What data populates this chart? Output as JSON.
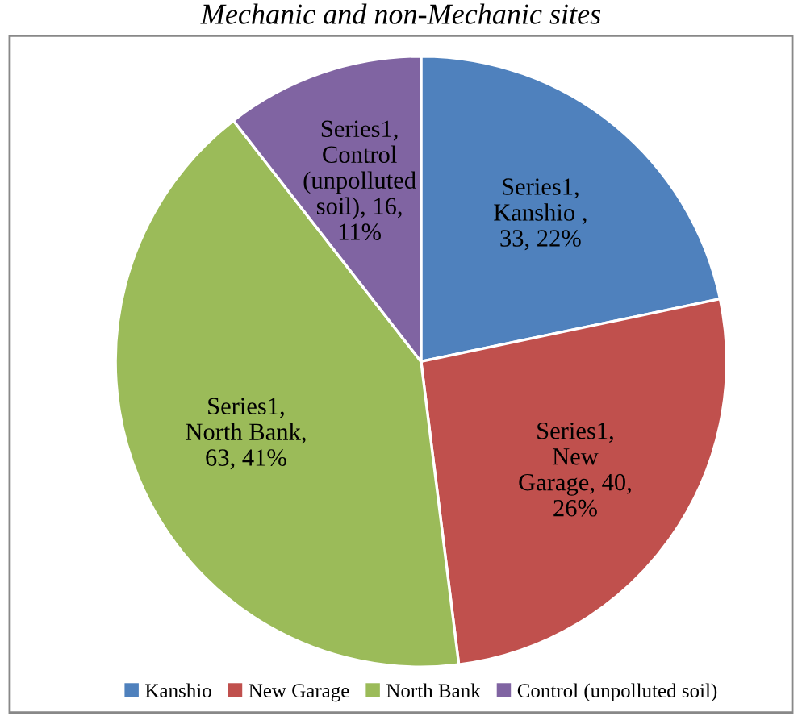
{
  "chart_data": {
    "type": "pie",
    "title": "Mechanic and non-Mechanic sites",
    "categories": [
      "Kanshio",
      "New Garage",
      "North Bank",
      "Control (unpolluted soil)"
    ],
    "values": [
      33,
      40,
      63,
      16
    ],
    "colors": [
      "#4f81bd",
      "#c0504d",
      "#9bbb59",
      "#8064a2"
    ],
    "value_labels": [
      "Series1,\nKanshio ,\n33, 22%",
      "Series1,\nNew\nGarage, 40,\n26%",
      "Series1,\nNorth Bank,\n63, 41%",
      "Series1,\nControl\n(unpolluted\nsoil), 16,\n11%"
    ],
    "legend": "bottom"
  }
}
